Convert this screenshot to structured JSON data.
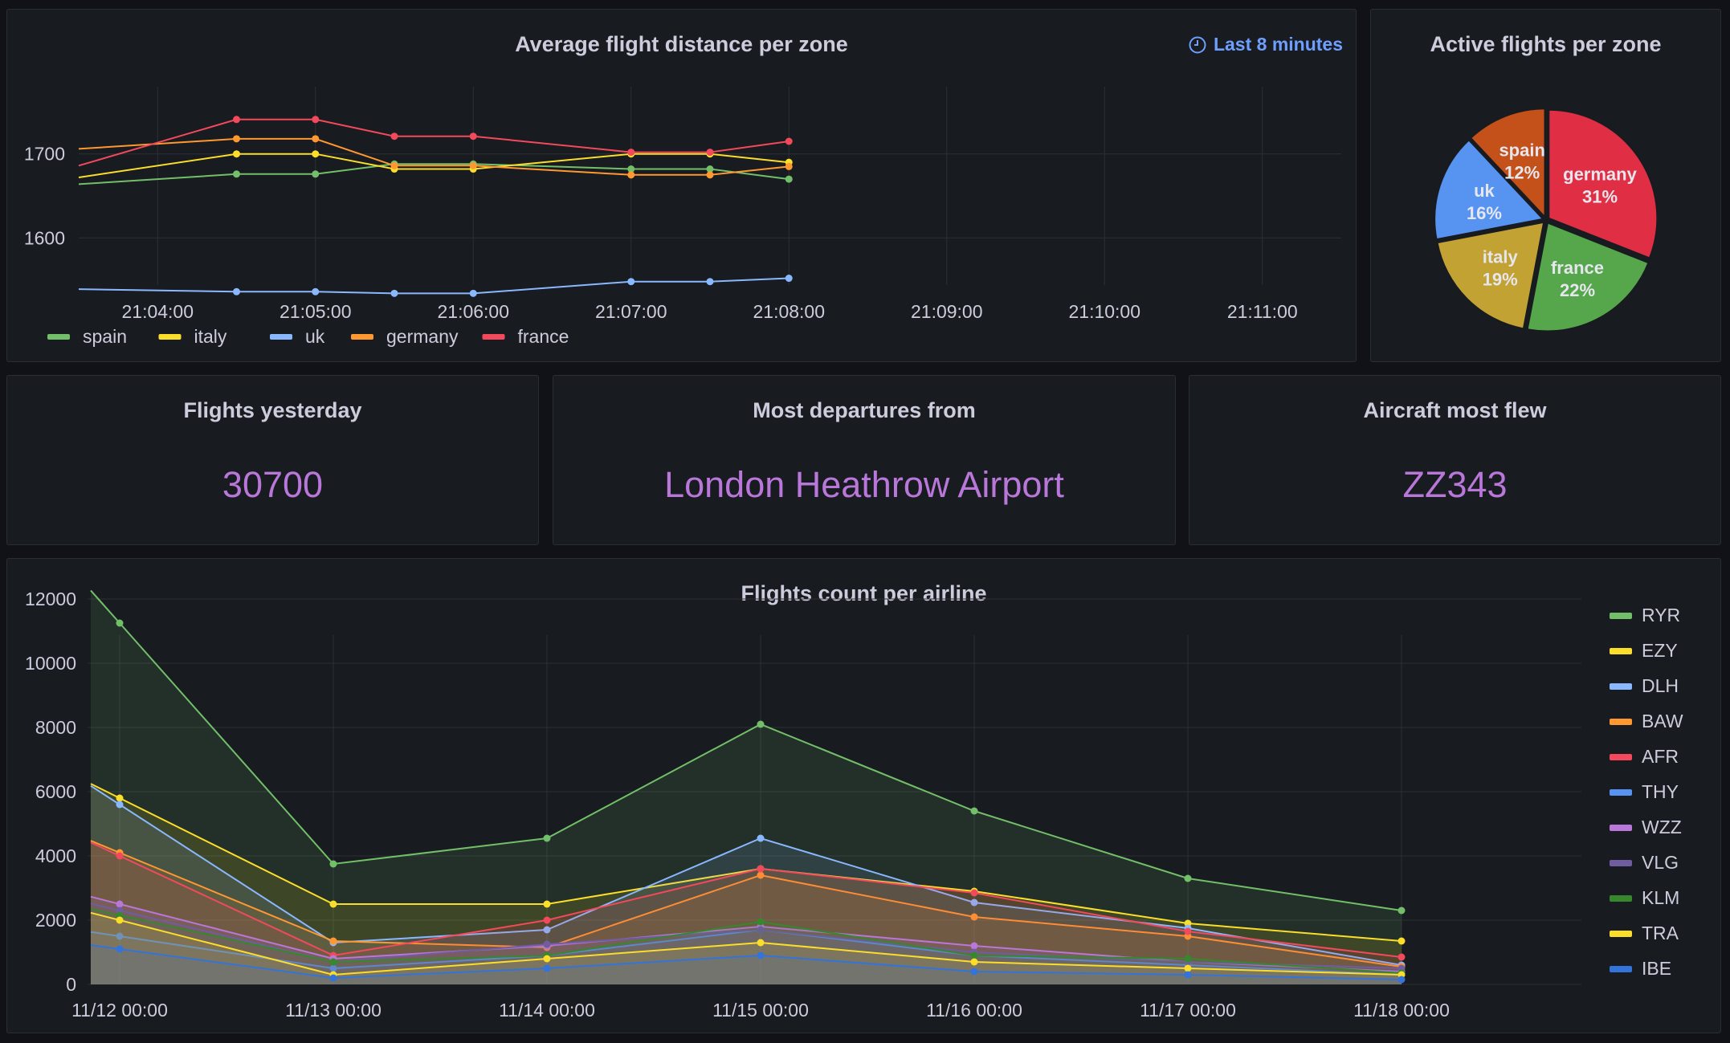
{
  "panel_distance": {
    "title": "Average flight distance per zone",
    "time_range": "Last 8 minutes",
    "chart_data": {
      "type": "line",
      "title": "Average flight distance per zone",
      "xlabel": "",
      "ylabel": "",
      "x_tick_labels": [
        "21:04:00",
        "21:05:00",
        "21:06:00",
        "21:07:00",
        "21:08:00",
        "21:09:00",
        "21:10:00",
        "21:11:00"
      ],
      "y_tick_labels": [
        "1600",
        "1700"
      ],
      "ylim": [
        1520,
        1780
      ],
      "x": [
        "21:03:30",
        "21:04:30",
        "21:05:00",
        "21:05:30",
        "21:06:00",
        "21:07:00",
        "21:07:30",
        "21:08:00"
      ],
      "series": [
        {
          "name": "spain",
          "color": "#73bf69",
          "values": [
            1664,
            1676,
            1676,
            1688,
            1688,
            1682,
            1682,
            1670
          ]
        },
        {
          "name": "italy",
          "color": "#fade2a",
          "values": [
            1672,
            1700,
            1700,
            1682,
            1682,
            1700,
            1700,
            1690
          ]
        },
        {
          "name": "uk",
          "color": "#8ab8ff",
          "values": [
            1539,
            1536,
            1536,
            1534,
            1534,
            1548,
            1548,
            1552
          ]
        },
        {
          "name": "germany",
          "color": "#ff9830",
          "values": [
            1706,
            1718,
            1718,
            1686,
            1686,
            1675,
            1675,
            1685
          ]
        },
        {
          "name": "france",
          "color": "#f2495c",
          "values": [
            1686,
            1741,
            1741,
            1721,
            1721,
            1702,
            1702,
            1715
          ]
        }
      ],
      "legend_position": "bottom-left",
      "grid": true
    }
  },
  "panel_active": {
    "title": "Active flights per zone",
    "chart_data": {
      "type": "pie",
      "title": "Active flights per zone",
      "slices": [
        {
          "name": "germany",
          "value": 31,
          "label": "31%",
          "color": "#e02f44"
        },
        {
          "name": "france",
          "value": 22,
          "label": "22%",
          "color": "#56a64b"
        },
        {
          "name": "italy",
          "value": 19,
          "label": "19%",
          "color": "#c2a232"
        },
        {
          "name": "uk",
          "value": 16,
          "label": "16%",
          "color": "#5794f2"
        },
        {
          "name": "spain",
          "value": 12,
          "label": "12%",
          "color": "#c4501a"
        }
      ]
    }
  },
  "stat_flights": {
    "title": "Flights yesterday",
    "value": "30700"
  },
  "stat_departures": {
    "title": "Most departures from",
    "value": "London Heathrow Airport"
  },
  "stat_aircraft": {
    "title": "Aircraft most flew",
    "value": "ZZ343"
  },
  "panel_airline": {
    "title": "Flights count per airline",
    "chart_data": {
      "type": "area",
      "title": "Flights count per airline",
      "xlabel": "",
      "ylabel": "",
      "x_tick_labels": [
        "11/12 00:00",
        "11/13 00:00",
        "11/14 00:00",
        "11/15 00:00",
        "11/16 00:00",
        "11/17 00:00",
        "11/18 00:00"
      ],
      "y_tick_labels": [
        "0",
        "2000",
        "4000",
        "6000",
        "8000",
        "10000",
        "12000"
      ],
      "ylim": [
        0,
        12500
      ],
      "x": [
        "11/12 00:00",
        "11/13 00:00",
        "11/14 00:00",
        "11/15 00:00",
        "11/16 00:00",
        "11/17 00:00",
        "11/18 00:00"
      ],
      "series": [
        {
          "name": "RYR",
          "color": "#73bf69",
          "values": [
            11250,
            3750,
            4550,
            8100,
            5400,
            3300,
            2300
          ]
        },
        {
          "name": "EZY",
          "color": "#fade2a",
          "values": [
            5800,
            2500,
            2500,
            3600,
            2900,
            1900,
            1350
          ]
        },
        {
          "name": "DLH",
          "color": "#8ab8ff",
          "values": [
            5600,
            1300,
            1700,
            4550,
            2550,
            1750,
            600
          ]
        },
        {
          "name": "BAW",
          "color": "#ff9830",
          "values": [
            4100,
            1350,
            1150,
            3400,
            2100,
            1500,
            550
          ]
        },
        {
          "name": "AFR",
          "color": "#f2495c",
          "values": [
            4000,
            900,
            2000,
            3600,
            2850,
            1650,
            850
          ]
        },
        {
          "name": "THY",
          "color": "#5794f2",
          "values": [
            1500,
            500,
            900,
            1700,
            900,
            600,
            300
          ]
        },
        {
          "name": "WZZ",
          "color": "#b877d9",
          "values": [
            2500,
            800,
            1200,
            1800,
            1200,
            700,
            400
          ]
        },
        {
          "name": "VLG",
          "color": "#705da0",
          "values": [
            2300,
            700,
            1250,
            1700,
            1000,
            700,
            500
          ]
        },
        {
          "name": "KLM",
          "color": "#37872d",
          "values": [
            2150,
            700,
            900,
            1950,
            900,
            800,
            350
          ]
        },
        {
          "name": "TRA",
          "color": "#fade2a",
          "values": [
            2000,
            300,
            800,
            1300,
            700,
            500,
            300
          ]
        },
        {
          "name": "IBE",
          "color": "#3274d9",
          "values": [
            1100,
            200,
            500,
            900,
            400,
            300,
            150
          ]
        }
      ],
      "legend_position": "right",
      "grid": true
    }
  }
}
